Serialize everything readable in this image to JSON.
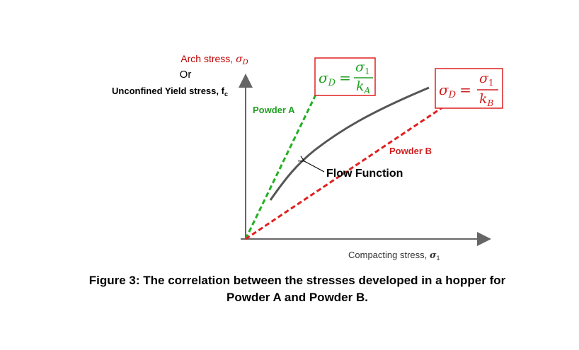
{
  "y_axis": {
    "label": {
      "text": "Arch stress, ",
      "symbol": "σ",
      "sub": "D"
    },
    "or": "Or",
    "alt": {
      "text": "Unconfined Yield stress, f",
      "sub": "c"
    }
  },
  "x_axis": {
    "text": "Compacting stress, ",
    "symbol": "σ",
    "sub": "1"
  },
  "lines": {
    "powder_a": "Powder A",
    "powder_b": "Powder B",
    "flow_function": "Flow Function"
  },
  "formula_a": {
    "lhs": "σ",
    "lhs_sub": "D",
    "eq": "=",
    "num": "σ",
    "num_sub": "1",
    "den": "k",
    "den_sub": "A"
  },
  "formula_b": {
    "lhs": "σ",
    "lhs_sub": "D",
    "eq": "=",
    "num": "σ",
    "num_sub": "1",
    "den": "k",
    "den_sub": "B"
  },
  "caption": {
    "line1": "Figure 3: The correlation between the stresses developed in a hopper for",
    "line2": "Powder A and Powder B."
  }
}
